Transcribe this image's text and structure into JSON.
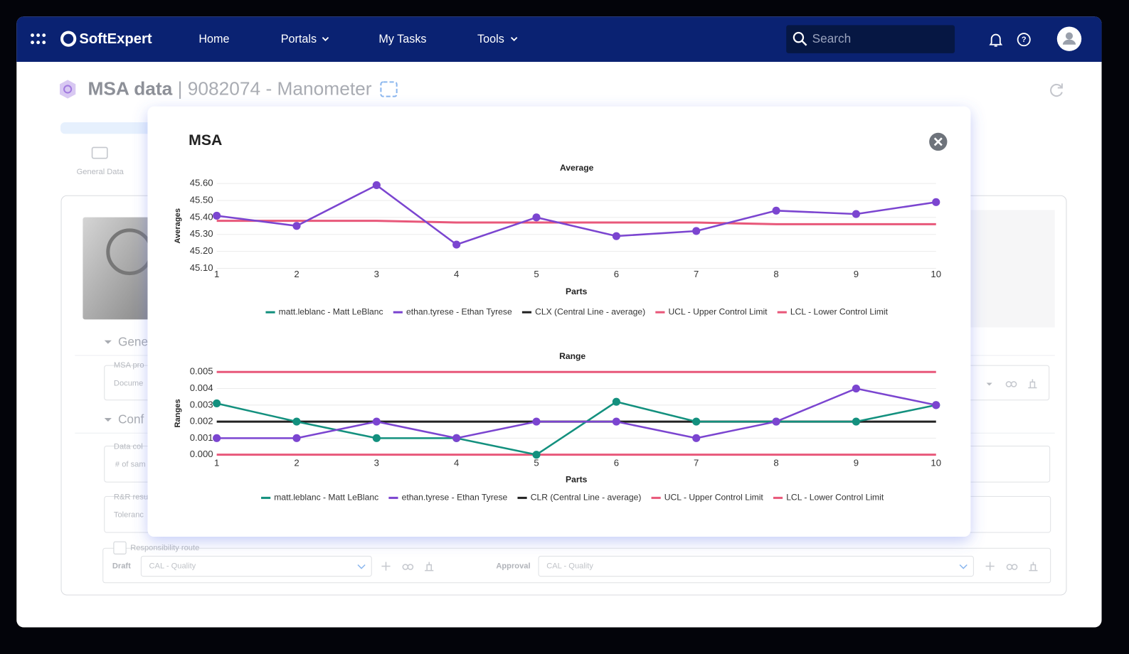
{
  "nav": {
    "brand": "SoftExpert",
    "items": [
      "Home",
      "Portals",
      "My Tasks",
      "Tools"
    ],
    "search": "Search"
  },
  "page": {
    "title": "MSA data",
    "subtitle": "| 9082074 - Manometer"
  },
  "background": {
    "tab": "General Data",
    "sections": [
      "Gene",
      "Conf"
    ],
    "fields": [
      {
        "label": "MSA pro",
        "value": "Docume"
      },
      {
        "label": "Data col",
        "value": "# of sam"
      },
      {
        "label": "R&R resu",
        "value": "Toleranc"
      }
    ],
    "route": {
      "label": "Responsibility route",
      "draft": "Draft",
      "draft_value": "CAL - Quality",
      "approval": "Approval",
      "approval_value": "CAL - Quality"
    }
  },
  "modal": {
    "title": "MSA",
    "charts": [
      {
        "type": "line",
        "title": "Average",
        "x_label": "Parts",
        "y_label": "Averages",
        "categories": [
          "1",
          "2",
          "3",
          "4",
          "5",
          "6",
          "7",
          "8",
          "9",
          "10"
        ],
        "ylim": [
          45.1,
          45.6
        ],
        "yticks": [
          {
            "value": 45.1,
            "label": "45.10"
          },
          {
            "value": 45.2,
            "label": "45.20"
          },
          {
            "value": 45.3,
            "label": "45.30"
          },
          {
            "value": 45.4,
            "label": "45.40"
          },
          {
            "value": 45.5,
            "label": "45.50"
          },
          {
            "value": 45.6,
            "label": "45.60"
          }
        ],
        "grid": true,
        "series": [
          {
            "name": "matt.leblanc - Matt LeBlanc",
            "color": "#13907e",
            "marker": true,
            "values": [
              null,
              null,
              null,
              null,
              null,
              null,
              null,
              null,
              null,
              null
            ]
          },
          {
            "name": "ethan.tyrese - Ethan Tyrese",
            "color": "#7b45d0",
            "marker": true,
            "values": [
              45.41,
              45.35,
              45.59,
              45.24,
              45.4,
              45.29,
              45.32,
              45.44,
              45.42,
              45.49
            ]
          },
          {
            "name": "CLX (Central Line - average)",
            "color": "#222222",
            "marker": false,
            "values": [
              null,
              null,
              null,
              null,
              null,
              null,
              null,
              null,
              null,
              null
            ]
          },
          {
            "name": "UCL - Upper Control Limit",
            "color": "#e8587a",
            "marker": false,
            "values": [
              45.38,
              45.38,
              45.38,
              45.37,
              45.37,
              45.37,
              45.37,
              45.36,
              45.36,
              45.36
            ]
          },
          {
            "name": "LCL - Lower Control Limit",
            "color": "#e8587a",
            "marker": false,
            "values": [
              null,
              null,
              null,
              null,
              null,
              null,
              null,
              null,
              null,
              null
            ]
          }
        ]
      },
      {
        "type": "line",
        "title": "Range",
        "x_label": "Parts",
        "y_label": "Ranges",
        "categories": [
          "1",
          "2",
          "3",
          "4",
          "5",
          "6",
          "7",
          "8",
          "9",
          "10"
        ],
        "ylim": [
          0,
          0.005
        ],
        "yticks": [
          {
            "value": 0,
            "label": "0.000"
          },
          0.001,
          0.002,
          0.003,
          0.004,
          0.005
        ],
        "grid": true,
        "series": [
          {
            "name": "matt.leblanc - Matt LeBlanc",
            "color": "#13907e",
            "marker": true,
            "values": [
              0.0031,
              0.002,
              0.001,
              0.001,
              0,
              0.0032,
              0.002,
              0.002,
              0.002,
              0.003
            ]
          },
          {
            "name": "ethan.tyrese - Ethan Tyrese",
            "color": "#7b45d0",
            "marker": true,
            "values": [
              0.001,
              0.001,
              0.002,
              0.001,
              0.002,
              0.002,
              0.001,
              0.002,
              0.004,
              0.003
            ]
          },
          {
            "name": "CLR (Central Line - average)",
            "color": "#222222",
            "marker": false,
            "values": [
              0.002,
              0.002,
              0.002,
              0.002,
              0.002,
              0.002,
              0.002,
              0.002,
              0.002,
              0.002
            ]
          },
          {
            "name": "UCL - Upper Control Limit",
            "color": "#e8587a",
            "marker": false,
            "values": [
              0.005,
              0.005,
              0.005,
              0.005,
              0.005,
              0.005,
              0.005,
              0.005,
              0.005,
              0.005
            ]
          },
          {
            "name": "LCL - Lower Control Limit",
            "color": "#e8587a",
            "marker": false,
            "values": [
              0,
              0,
              0,
              0,
              0,
              0,
              0,
              0,
              0,
              0
            ]
          }
        ]
      }
    ]
  }
}
